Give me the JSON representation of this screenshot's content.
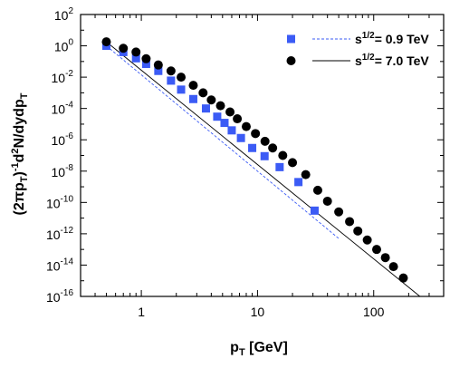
{
  "chart_data": {
    "type": "scatter",
    "xlabel": {
      "main": "p",
      "sub": "T",
      "rest": " [GeV]"
    },
    "ylabel": {
      "a": "(2πp",
      "a_sub": "T",
      "b": ")",
      "b_sup": "-1",
      "c": "d",
      "c_sup": "2",
      "d": "N/dydp",
      "d_sub": "T"
    },
    "x_scale": "log",
    "y_scale": "log",
    "xlim": [
      0.3,
      400
    ],
    "ylim": [
      1e-16,
      100
    ],
    "x_ticks": [
      {
        "value": 1,
        "label": "1"
      },
      {
        "value": 10,
        "label": "10"
      },
      {
        "value": 100,
        "label": "100"
      }
    ],
    "y_ticks": [
      {
        "value": 100.0,
        "base": "10",
        "exp": "2"
      },
      {
        "value": 1.0,
        "base": "10",
        "exp": "0"
      },
      {
        "value": 0.01,
        "base": "10",
        "exp": "-2"
      },
      {
        "value": 0.0001,
        "base": "10",
        "exp": "-4"
      },
      {
        "value": 1e-06,
        "base": "10",
        "exp": "-6"
      },
      {
        "value": 1e-08,
        "base": "10",
        "exp": "-8"
      },
      {
        "value": 1e-10,
        "base": "10",
        "exp": "-10"
      },
      {
        "value": 1e-12,
        "base": "10",
        "exp": "-12"
      },
      {
        "value": 1e-14,
        "base": "10",
        "exp": "-14"
      },
      {
        "value": 1e-16,
        "base": "10",
        "exp": "-16"
      }
    ],
    "grid": false,
    "legend_position": "top-right",
    "series": [
      {
        "name": {
          "pre": "s",
          "sup": "1/2",
          "post": "= 0.9 TeV"
        },
        "marker": "square",
        "color": "#3b5bf5",
        "line_style": "dashed",
        "line_color": "#3b5bf5",
        "x": [
          0.5,
          0.7,
          0.9,
          1.1,
          1.4,
          1.8,
          2.2,
          2.8,
          3.6,
          4.5,
          5.2,
          6.0,
          7.2,
          9.0,
          11.5,
          15.5,
          22.5,
          31.0
        ],
        "y": [
          1.0,
          0.4,
          0.16,
          0.07,
          0.025,
          0.006,
          0.0016,
          0.0004,
          0.0001,
          3e-05,
          1.2e-05,
          4e-06,
          1.3e-06,
          3e-07,
          9e-08,
          1.8e-08,
          2e-09,
          3e-11
        ],
        "fit_x": [
          0.5,
          50
        ],
        "fit_y": [
          1.0,
          5e-13
        ]
      },
      {
        "name": {
          "pre": "s",
          "sup": "1/2",
          "post": "= 7.0 TeV"
        },
        "marker": "circle",
        "color": "#000000",
        "line_style": "solid",
        "line_color": "#000000",
        "x": [
          0.5,
          0.7,
          0.9,
          1.1,
          1.4,
          1.8,
          2.2,
          2.8,
          3.4,
          4.0,
          4.8,
          5.8,
          6.7,
          8.0,
          9.6,
          11.6,
          13.5,
          16.5,
          20,
          26,
          33,
          40,
          50,
          62,
          73,
          88,
          106,
          126,
          148,
          180
        ],
        "y": [
          1.8,
          0.7,
          0.4,
          0.15,
          0.06,
          0.025,
          0.01,
          0.003,
          0.001,
          0.00035,
          0.00015,
          6e-05,
          2.2e-05,
          7e-06,
          2.5e-06,
          8e-07,
          3e-07,
          1e-07,
          3.5e-08,
          6e-09,
          6e-10,
          1.2e-10,
          2.5e-11,
          6e-12,
          1.5e-12,
          4e-13,
          1e-13,
          3e-14,
          8e-15,
          1.5e-15
        ],
        "fit_x": [
          0.5,
          250
        ],
        "fit_y": [
          1.8,
          1e-16
        ]
      }
    ]
  }
}
